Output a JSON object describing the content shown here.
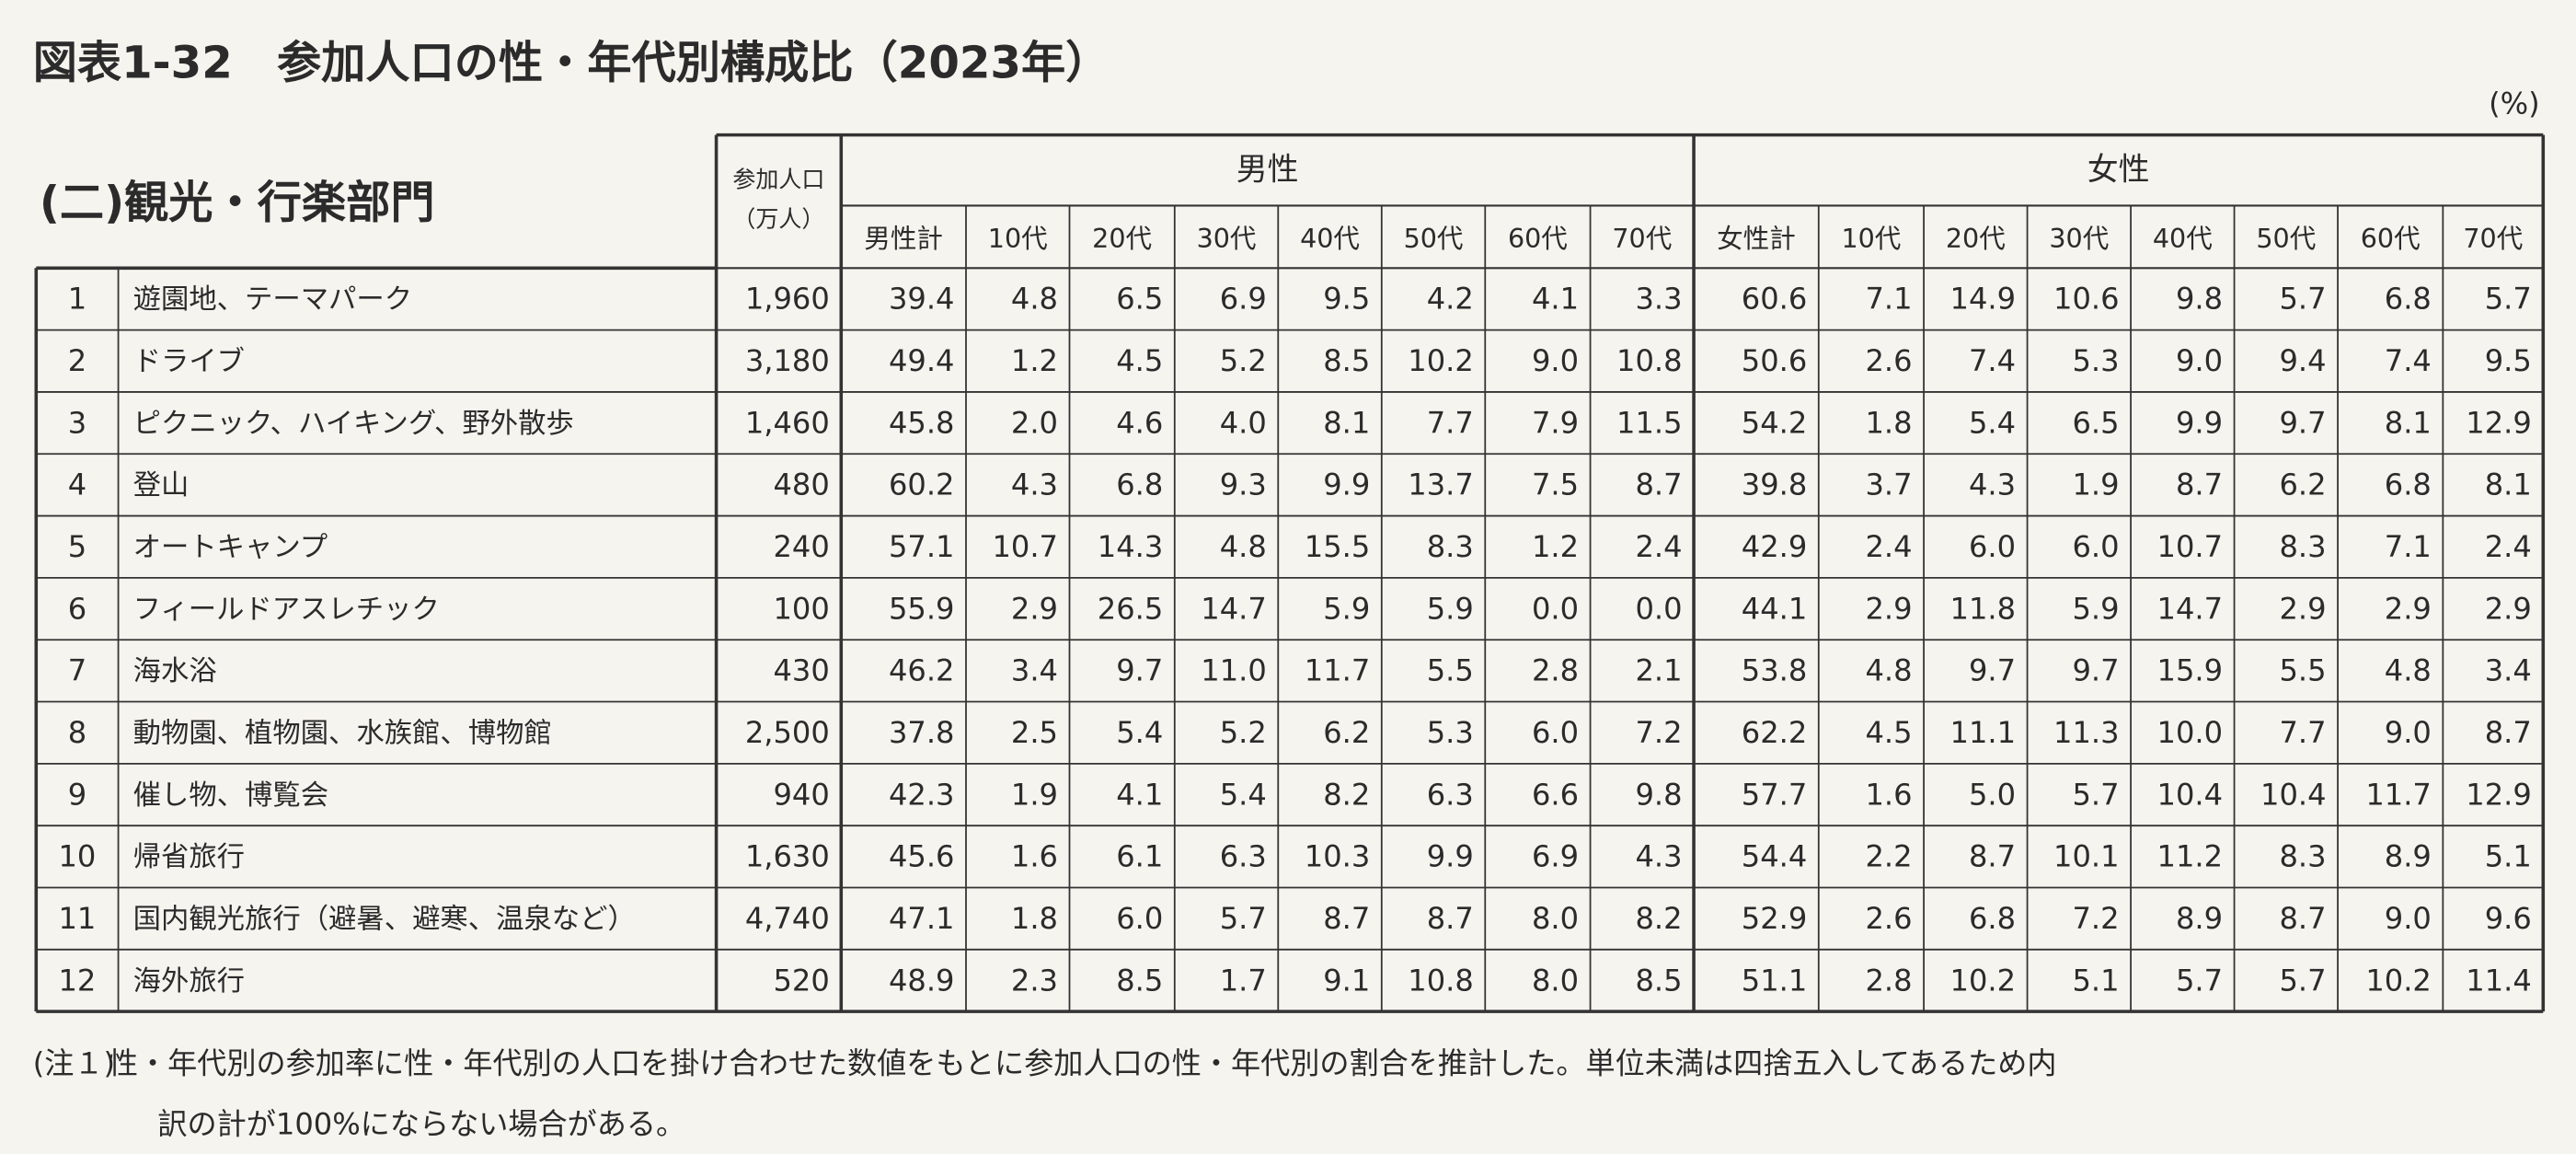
{
  "title": "図表1-32　参加人口の性・年代別構成比（2023年）",
  "unit": "(%)",
  "section": "(二)観光・行楽部門",
  "header": {
    "participants": [
      "参加人口",
      "（万人）"
    ],
    "male": {
      "label": "男性",
      "columns": [
        "男性計",
        "10代",
        "20代",
        "30代",
        "40代",
        "50代",
        "60代",
        "70代"
      ]
    },
    "female": {
      "label": "女性",
      "columns": [
        "女性計",
        "10代",
        "20代",
        "30代",
        "40代",
        "50代",
        "60代",
        "70代"
      ]
    }
  },
  "table": {
    "rows": [
      [
        "1",
        "遊園地、テーマパーク",
        "1,960",
        "39.4",
        "4.8",
        "6.5",
        "6.9",
        "9.5",
        "4.2",
        "4.1",
        "3.3",
        "60.6",
        "7.1",
        "14.9",
        "10.6",
        "9.8",
        "5.7",
        "6.8",
        "5.7"
      ],
      [
        "2",
        "ドライブ",
        "3,180",
        "49.4",
        "1.2",
        "4.5",
        "5.2",
        "8.5",
        "10.2",
        "9.0",
        "10.8",
        "50.6",
        "2.6",
        "7.4",
        "5.3",
        "9.0",
        "9.4",
        "7.4",
        "9.5"
      ],
      [
        "3",
        "ピクニック、ハイキング、野外散歩",
        "1,460",
        "45.8",
        "2.0",
        "4.6",
        "4.0",
        "8.1",
        "7.7",
        "7.9",
        "11.5",
        "54.2",
        "1.8",
        "5.4",
        "6.5",
        "9.9",
        "9.7",
        "8.1",
        "12.9"
      ],
      [
        "4",
        "登山",
        "480",
        "60.2",
        "4.3",
        "6.8",
        "9.3",
        "9.9",
        "13.7",
        "7.5",
        "8.7",
        "39.8",
        "3.7",
        "4.3",
        "1.9",
        "8.7",
        "6.2",
        "6.8",
        "8.1"
      ],
      [
        "5",
        "オートキャンプ",
        "240",
        "57.1",
        "10.7",
        "14.3",
        "4.8",
        "15.5",
        "8.3",
        "1.2",
        "2.4",
        "42.9",
        "2.4",
        "6.0",
        "6.0",
        "10.7",
        "8.3",
        "7.1",
        "2.4"
      ],
      [
        "6",
        "フィールドアスレチック",
        "100",
        "55.9",
        "2.9",
        "26.5",
        "14.7",
        "5.9",
        "5.9",
        "0.0",
        "0.0",
        "44.1",
        "2.9",
        "11.8",
        "5.9",
        "14.7",
        "2.9",
        "2.9",
        "2.9"
      ],
      [
        "7",
        "海水浴",
        "430",
        "46.2",
        "3.4",
        "9.7",
        "11.0",
        "11.7",
        "5.5",
        "2.8",
        "2.1",
        "53.8",
        "4.8",
        "9.7",
        "9.7",
        "15.9",
        "5.5",
        "4.8",
        "3.4"
      ],
      [
        "8",
        "動物園、植物園、水族館、博物館",
        "2,500",
        "37.8",
        "2.5",
        "5.4",
        "5.2",
        "6.2",
        "5.3",
        "6.0",
        "7.2",
        "62.2",
        "4.5",
        "11.1",
        "11.3",
        "10.0",
        "7.7",
        "9.0",
        "8.7"
      ],
      [
        "9",
        "催し物、博覧会",
        "940",
        "42.3",
        "1.9",
        "4.1",
        "5.4",
        "8.2",
        "6.3",
        "6.6",
        "9.8",
        "57.7",
        "1.6",
        "5.0",
        "5.7",
        "10.4",
        "10.4",
        "11.7",
        "12.9"
      ],
      [
        "10",
        "帰省旅行",
        "1,630",
        "45.6",
        "1.6",
        "6.1",
        "6.3",
        "10.3",
        "9.9",
        "6.9",
        "4.3",
        "54.4",
        "2.2",
        "8.7",
        "10.1",
        "11.2",
        "8.3",
        "8.9",
        "5.1"
      ],
      [
        "11",
        "国内観光旅行（避暑、避寒、温泉など）",
        "4,740",
        "47.1",
        "1.8",
        "6.0",
        "5.7",
        "8.7",
        "8.7",
        "8.0",
        "8.2",
        "52.9",
        "2.6",
        "6.8",
        "7.2",
        "8.9",
        "8.7",
        "9.0",
        "9.6"
      ],
      [
        "12",
        "海外旅行",
        "520",
        "48.9",
        "2.3",
        "8.5",
        "1.7",
        "9.1",
        "10.8",
        "8.0",
        "8.5",
        "51.1",
        "2.8",
        "10.2",
        "5.1",
        "5.7",
        "5.7",
        "10.2",
        "11.4"
      ]
    ]
  },
  "note": {
    "label": "(注１)",
    "lines": [
      "性・年代別の参加率に性・年代別の人口を掛け合わせた数値をもとに参加人口の性・年代別の割合を推計した。単位未満は四捨五入してあるため内",
      "訳の計が100%にならない場合がある。"
    ]
  }
}
